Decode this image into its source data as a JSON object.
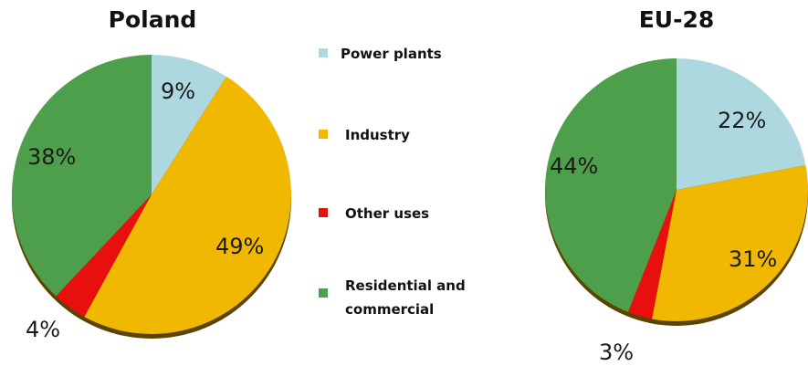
{
  "chart_data": [
    {
      "type": "pie",
      "title": "Poland",
      "categories": [
        "Power plants",
        "Industry",
        "Other uses",
        "Residential and commercial"
      ],
      "values": [
        9,
        49,
        4,
        38
      ],
      "labels": [
        "9%",
        "49%",
        "4%",
        "38%"
      ]
    },
    {
      "type": "pie",
      "title": "EU-28",
      "categories": [
        "Power plants",
        "Industry",
        "Other uses",
        "Residential and commercial"
      ],
      "values": [
        22,
        31,
        3,
        44
      ],
      "labels": [
        "22%",
        "31%",
        "3%",
        "44%"
      ]
    }
  ],
  "legend": {
    "items": [
      {
        "lines": [
          "Power plants"
        ],
        "color": "#add8e0"
      },
      {
        "lines": [
          "Industry"
        ],
        "color": "#f0b800"
      },
      {
        "lines": [
          "Other uses"
        ],
        "color": "#e8100f"
      },
      {
        "lines": [
          "Residential and",
          "commercial"
        ],
        "color": "#4e9f4b"
      }
    ]
  }
}
